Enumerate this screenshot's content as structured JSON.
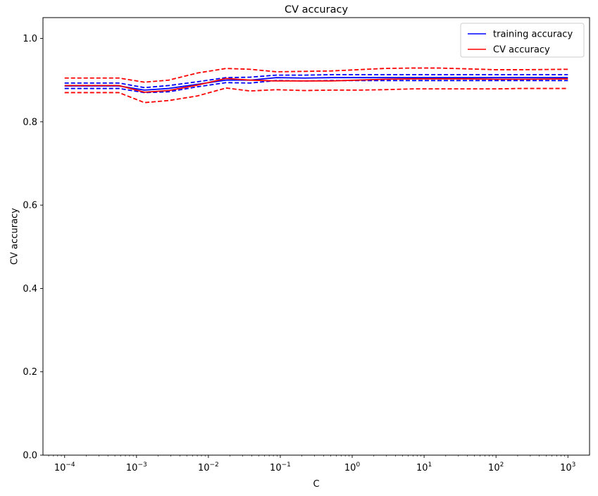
{
  "chart_data": {
    "type": "line",
    "title": "CV accuracy",
    "xlabel": "C",
    "ylabel": "CV accuracy",
    "xscale": "log",
    "xlim": [
      5e-05,
      2000
    ],
    "ylim": [
      0,
      1.05
    ],
    "x_tick_labels": [
      {
        "base": "10",
        "exp": "−4",
        "value": 0.0001
      },
      {
        "base": "10",
        "exp": "−3",
        "value": 0.001
      },
      {
        "base": "10",
        "exp": "−2",
        "value": 0.01
      },
      {
        "base": "10",
        "exp": "−1",
        "value": 0.1
      },
      {
        "base": "10",
        "exp": "0",
        "value": 1
      },
      {
        "base": "10",
        "exp": "1",
        "value": 10
      },
      {
        "base": "10",
        "exp": "2",
        "value": 100
      },
      {
        "base": "10",
        "exp": "3",
        "value": 1000
      }
    ],
    "y_ticks": [
      0.0,
      0.2,
      0.4,
      0.6,
      0.8,
      1.0
    ],
    "y_tick_labels": [
      "0.0",
      "0.2",
      "0.4",
      "0.6",
      "0.8",
      "1.0"
    ],
    "grid": false,
    "legend_position": "top-right",
    "x": [
      0.0001,
      0.000569,
      0.00129,
      0.00281,
      0.00702,
      0.0176,
      0.0379,
      0.0882,
      0.219,
      0.513,
      1.2,
      2.79,
      6.92,
      15.9,
      40.2,
      98.0,
      236,
      1000
    ],
    "series": [
      {
        "name": "training accuracy",
        "color": "#0000ff",
        "style": "solid",
        "values": [
          0.886,
          0.886,
          0.876,
          0.88,
          0.89,
          0.9,
          0.9,
          0.906,
          0.905,
          0.906,
          0.906,
          0.906,
          0.906,
          0.906,
          0.906,
          0.906,
          0.906,
          0.906
        ]
      },
      {
        "color": "#0000ff",
        "style": "dashed",
        "values": [
          0.893,
          0.893,
          0.882,
          0.887,
          0.896,
          0.906,
          0.907,
          0.912,
          0.912,
          0.913,
          0.913,
          0.913,
          0.913,
          0.913,
          0.913,
          0.913,
          0.913,
          0.913
        ]
      },
      {
        "color": "#0000ff",
        "style": "dashed",
        "values": [
          0.88,
          0.88,
          0.87,
          0.872,
          0.884,
          0.894,
          0.893,
          0.899,
          0.898,
          0.899,
          0.899,
          0.899,
          0.899,
          0.899,
          0.899,
          0.899,
          0.899,
          0.899
        ]
      },
      {
        "name": "CV accuracy",
        "color": "#ff0000",
        "style": "solid",
        "values": [
          0.887,
          0.887,
          0.871,
          0.875,
          0.888,
          0.904,
          0.9,
          0.898,
          0.898,
          0.898,
          0.9,
          0.902,
          0.903,
          0.903,
          0.903,
          0.902,
          0.902,
          0.903
        ]
      },
      {
        "color": "#ff0000",
        "style": "dashed",
        "values": [
          0.905,
          0.905,
          0.895,
          0.9,
          0.917,
          0.928,
          0.926,
          0.92,
          0.921,
          0.922,
          0.925,
          0.928,
          0.929,
          0.929,
          0.927,
          0.925,
          0.925,
          0.926
        ]
      },
      {
        "color": "#ff0000",
        "style": "dashed",
        "values": [
          0.87,
          0.87,
          0.846,
          0.851,
          0.862,
          0.881,
          0.874,
          0.877,
          0.875,
          0.876,
          0.876,
          0.877,
          0.879,
          0.879,
          0.879,
          0.879,
          0.88,
          0.88
        ]
      }
    ]
  }
}
